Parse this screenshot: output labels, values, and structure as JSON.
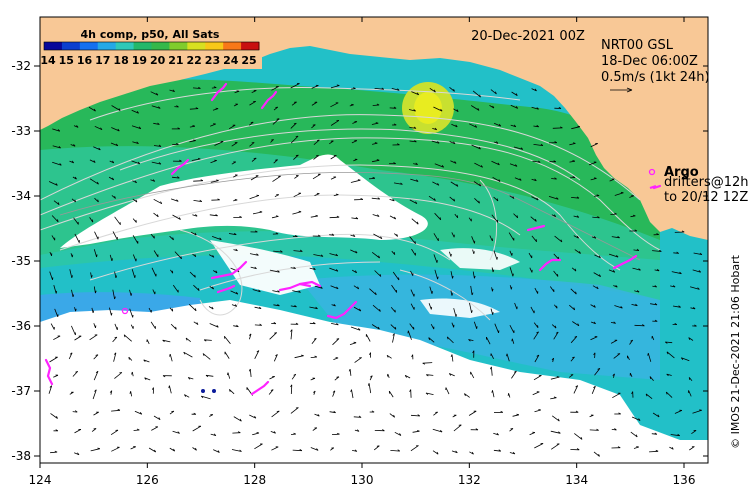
{
  "map": {
    "date_label": "20-Dec-2021 00Z",
    "composite_label": "4h comp, p50, All Sats",
    "altimetry": {
      "line1": "NRT00 GSL",
      "line2": "18-Dec 06:00Z",
      "scale_label": "0.5m/s (1kt 24h)"
    },
    "legend": {
      "argo_label": "Argo",
      "drifter_line1": "drifters@12h",
      "drifter_line2": "to 20/12 12Z"
    },
    "credit": "© IMOS 21-Dec-2021 21:06 Hobart",
    "colorbar": {
      "ticks": [
        "14",
        "15",
        "16",
        "17",
        "18",
        "19",
        "20",
        "21",
        "22",
        "23",
        "24",
        "25"
      ],
      "colors": [
        "#08089a",
        "#0b3fd0",
        "#1570f0",
        "#24a8e6",
        "#2fc8b8",
        "#23b86a",
        "#35b84a",
        "#80cc2c",
        "#d8e020",
        "#f8c818",
        "#f87818",
        "#c81010"
      ]
    },
    "axes": {
      "lon_ticks": [
        "124",
        "126",
        "128",
        "130",
        "132",
        "134",
        "136"
      ],
      "lat_ticks": [
        "-32",
        "-33",
        "-34",
        "-35",
        "-36",
        "-37",
        "-38"
      ]
    },
    "colors": {
      "land": "#f8c896",
      "cloud": "#ffffff",
      "argo": "#ff22ff",
      "contour": "#d8d8d8",
      "vector": "#000000"
    }
  }
}
